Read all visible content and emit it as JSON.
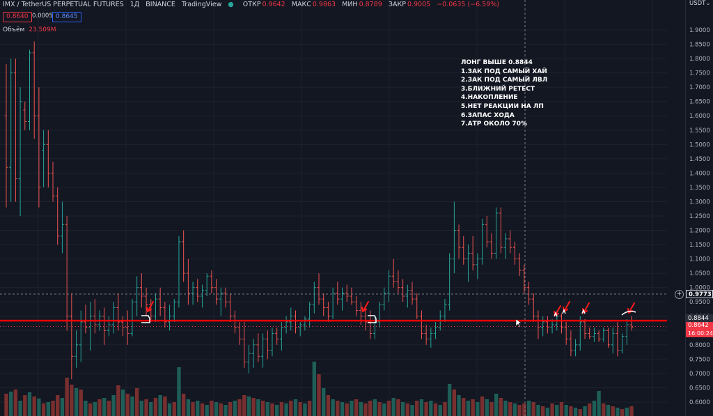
{
  "header": {
    "symbol": "IMX / TetherUS PERPETUAL FUTURES",
    "interval": "1Д",
    "exchange": "BINANCE",
    "source": "TradingView",
    "open_label": "ОТКР",
    "open": "0.9642",
    "high_label": "МАКС",
    "high": "0.9863",
    "low_label": "МИН",
    "low": "0.8789",
    "close_label": "ЗАКР",
    "close": "0.9005",
    "change": "−0.0635 (−6.59%)",
    "bid": "0.8640",
    "spread": "0.0005",
    "ask": "0.8645",
    "volume_label": "Объём",
    "volume": "23.509M"
  },
  "annotation": {
    "lines": [
      "ЛОНГ ВЫШЕ 0.8844",
      "1.ЗАК ПОД САМЫЙ ХАЙ",
      "2.ЗАК ПОД САМЫЙ ЛВЛ",
      "3.БЛИЖНИЙ РЕТЕСТ",
      "4.НАКОПЛЕНИЕ",
      "5.НЕТ РЕАКЦИИ НА ЛП",
      "6.ЗАПАС ХОДА",
      "7.АТР ОКОЛО 70%"
    ]
  },
  "price_axis": {
    "currency": "USDT",
    "crosshair_price": "0.9773",
    "level_price": "0.8844",
    "last_price": "0.8642",
    "countdown": "16:00:24"
  },
  "colors": {
    "background": "#131722",
    "up": "#26a69a",
    "down": "#ef5350",
    "level_line": "#ff0000",
    "grid": "#1e222d"
  },
  "chart_data": {
    "type": "ohlc",
    "y_axis": {
      "ticks": [
        "1.9000",
        "1.8500",
        "1.8000",
        "1.7500",
        "1.7000",
        "1.6500",
        "1.6000",
        "1.5500",
        "1.5000",
        "1.4500",
        "1.4000",
        "1.3500",
        "1.3000",
        "1.2500",
        "1.2000",
        "1.1500",
        "1.1000",
        "1.0500",
        "1.0000",
        "0.9500",
        "0.9000",
        "0.8500",
        "0.8000",
        "0.7500",
        "0.7000",
        "0.6500",
        "0.6000"
      ],
      "range": [
        0.575,
        1.945
      ]
    },
    "horizontal_level": 0.8844,
    "crosshair_price": 0.9773,
    "bars": [
      [
        1.6,
        1.78,
        1.28,
        1.42
      ],
      [
        1.42,
        1.8,
        1.3,
        1.75
      ],
      [
        1.75,
        1.8,
        1.3,
        1.38
      ],
      [
        1.38,
        1.7,
        1.25,
        1.65
      ],
      [
        1.62,
        1.65,
        1.55,
        1.58
      ],
      [
        1.58,
        1.83,
        1.55,
        1.82
      ],
      [
        1.82,
        1.86,
        1.52,
        1.6
      ],
      [
        1.6,
        1.7,
        1.28,
        1.35
      ],
      [
        1.48,
        1.55,
        1.35,
        1.5
      ],
      [
        1.5,
        1.55,
        1.35,
        1.4
      ],
      [
        1.4,
        1.44,
        1.3,
        1.32
      ],
      [
        1.32,
        1.35,
        1.15,
        1.18
      ],
      [
        1.18,
        1.3,
        1.12,
        1.22
      ],
      [
        1.22,
        1.25,
        0.85,
        0.9
      ],
      [
        0.9,
        0.98,
        0.68,
        0.76
      ],
      [
        0.76,
        0.85,
        0.72,
        0.8
      ],
      [
        0.8,
        0.92,
        0.74,
        0.88
      ],
      [
        0.88,
        0.94,
        0.84,
        0.86
      ],
      [
        0.86,
        0.95,
        0.78,
        0.9
      ],
      [
        0.9,
        0.96,
        0.84,
        0.87
      ],
      [
        0.87,
        0.92,
        0.85,
        0.9
      ],
      [
        0.9,
        0.93,
        0.8,
        0.85
      ],
      [
        0.85,
        0.9,
        0.83,
        0.87
      ],
      [
        0.87,
        0.95,
        0.84,
        0.93
      ],
      [
        0.93,
        0.98,
        0.85,
        0.88
      ],
      [
        0.88,
        0.9,
        0.83,
        0.86
      ],
      [
        0.86,
        0.92,
        0.8,
        0.84
      ],
      [
        0.84,
        0.96,
        0.83,
        0.95
      ],
      [
        0.95,
        1.04,
        0.9,
        1.0
      ],
      [
        1.0,
        1.05,
        0.93,
        0.97
      ],
      [
        0.97,
        1.0,
        0.9,
        0.94
      ],
      [
        0.94,
        0.96,
        0.88,
        0.9
      ],
      [
        0.9,
        0.98,
        0.88,
        0.96
      ],
      [
        0.96,
        1.0,
        0.9,
        0.93
      ],
      [
        0.93,
        0.95,
        0.86,
        0.88
      ],
      [
        0.88,
        0.94,
        0.85,
        0.9
      ],
      [
        0.9,
        0.96,
        0.88,
        0.95
      ],
      [
        0.95,
        1.18,
        0.93,
        1.16
      ],
      [
        1.16,
        1.2,
        1.02,
        1.05
      ],
      [
        1.05,
        1.1,
        0.94,
        0.98
      ],
      [
        0.98,
        1.02,
        0.94,
        1.0
      ],
      [
        1.0,
        1.03,
        0.95,
        0.97
      ],
      [
        0.97,
        1.01,
        0.93,
        0.99
      ],
      [
        0.99,
        1.05,
        0.97,
        1.04
      ],
      [
        1.04,
        1.06,
        0.98,
        1.0
      ],
      [
        1.0,
        1.03,
        0.94,
        0.96
      ],
      [
        0.96,
        1.0,
        0.9,
        0.98
      ],
      [
        0.98,
        1.0,
        0.93,
        0.95
      ],
      [
        0.95,
        0.98,
        0.88,
        0.9
      ],
      [
        0.9,
        0.92,
        0.84,
        0.86
      ],
      [
        0.86,
        0.88,
        0.8,
        0.82
      ],
      [
        0.82,
        0.88,
        0.72,
        0.74
      ],
      [
        0.74,
        0.8,
        0.7,
        0.77
      ],
      [
        0.77,
        0.82,
        0.72,
        0.8
      ],
      [
        0.8,
        0.84,
        0.74,
        0.76
      ],
      [
        0.76,
        0.84,
        0.72,
        0.82
      ],
      [
        0.82,
        0.85,
        0.75,
        0.78
      ],
      [
        0.78,
        0.86,
        0.76,
        0.84
      ],
      [
        0.84,
        0.86,
        0.8,
        0.82
      ],
      [
        0.82,
        0.88,
        0.78,
        0.86
      ],
      [
        0.86,
        0.9,
        0.84,
        0.88
      ],
      [
        0.88,
        0.93,
        0.85,
        0.9
      ],
      [
        0.9,
        0.92,
        0.84,
        0.86
      ],
      [
        0.86,
        0.88,
        0.83,
        0.87
      ],
      [
        0.87,
        0.9,
        0.85,
        0.89
      ],
      [
        0.89,
        0.95,
        0.86,
        0.94
      ],
      [
        0.94,
        1.02,
        0.91,
        1.0
      ],
      [
        1.0,
        1.05,
        0.94,
        0.96
      ],
      [
        0.96,
        0.98,
        0.9,
        0.93
      ],
      [
        0.93,
        0.95,
        0.88,
        0.9
      ],
      [
        0.9,
        1.0,
        0.89,
        0.98
      ],
      [
        0.98,
        1.02,
        0.94,
        0.96
      ],
      [
        0.96,
        1.0,
        0.92,
        0.98
      ],
      [
        0.98,
        1.01,
        0.95,
        0.97
      ],
      [
        0.97,
        1.0,
        0.94,
        0.95
      ],
      [
        0.95,
        0.97,
        0.9,
        0.92
      ],
      [
        0.92,
        0.95,
        0.87,
        0.9
      ],
      [
        0.9,
        0.93,
        0.85,
        0.88
      ],
      [
        0.88,
        0.92,
        0.82,
        0.84
      ],
      [
        0.84,
        0.9,
        0.82,
        0.88
      ],
      [
        0.88,
        0.95,
        0.86,
        0.94
      ],
      [
        0.94,
        1.0,
        0.92,
        0.98
      ],
      [
        0.98,
        1.06,
        0.95,
        1.04
      ],
      [
        1.04,
        1.1,
        1.0,
        1.02
      ],
      [
        1.02,
        1.06,
        0.98,
        1.0
      ],
      [
        1.0,
        1.03,
        0.95,
        0.97
      ],
      [
        0.97,
        1.01,
        0.93,
        0.99
      ],
      [
        0.99,
        1.02,
        0.94,
        0.96
      ],
      [
        0.96,
        0.98,
        0.89,
        0.9
      ],
      [
        0.9,
        0.92,
        0.82,
        0.84
      ],
      [
        0.84,
        0.87,
        0.8,
        0.82
      ],
      [
        0.82,
        0.86,
        0.79,
        0.84
      ],
      [
        0.84,
        0.88,
        0.82,
        0.86
      ],
      [
        0.86,
        0.92,
        0.85,
        0.9
      ],
      [
        0.9,
        0.96,
        0.88,
        0.94
      ],
      [
        0.94,
        1.12,
        0.92,
        1.1
      ],
      [
        1.1,
        1.3,
        1.05,
        1.2
      ],
      [
        1.2,
        1.22,
        1.1,
        1.14
      ],
      [
        1.14,
        1.18,
        1.08,
        1.1
      ],
      [
        1.1,
        1.15,
        1.02,
        1.12
      ],
      [
        1.12,
        1.18,
        1.06,
        1.08
      ],
      [
        1.08,
        1.12,
        1.03,
        1.1
      ],
      [
        1.1,
        1.24,
        1.08,
        1.22
      ],
      [
        1.22,
        1.25,
        1.14,
        1.16
      ],
      [
        1.16,
        1.19,
        1.1,
        1.12
      ],
      [
        1.12,
        1.28,
        1.1,
        1.26
      ],
      [
        1.26,
        1.28,
        1.12,
        1.14
      ],
      [
        1.14,
        1.19,
        1.1,
        1.17
      ],
      [
        1.17,
        1.2,
        1.12,
        1.14
      ],
      [
        1.14,
        1.16,
        1.08,
        1.1
      ],
      [
        1.1,
        1.12,
        1.04,
        1.06
      ],
      [
        1.06,
        1.08,
        0.98,
        1.0
      ],
      [
        1.0,
        1.02,
        0.94,
        0.96
      ],
      [
        0.96,
        0.98,
        0.88,
        0.9
      ],
      [
        0.9,
        0.92,
        0.82,
        0.86
      ],
      [
        0.86,
        0.9,
        0.83,
        0.88
      ],
      [
        0.88,
        0.9,
        0.84,
        0.86
      ],
      [
        0.86,
        0.89,
        0.84,
        0.87
      ],
      [
        0.87,
        0.92,
        0.85,
        0.9
      ],
      [
        0.9,
        0.91,
        0.84,
        0.86
      ],
      [
        0.86,
        0.88,
        0.8,
        0.82
      ],
      [
        0.82,
        0.85,
        0.76,
        0.78
      ],
      [
        0.78,
        0.82,
        0.76,
        0.8
      ],
      [
        0.8,
        0.9,
        0.78,
        0.88
      ],
      [
        0.88,
        0.89,
        0.82,
        0.84
      ],
      [
        0.84,
        0.86,
        0.82,
        0.83
      ],
      [
        0.83,
        0.86,
        0.81,
        0.84
      ],
      [
        0.84,
        0.85,
        0.81,
        0.82
      ],
      [
        0.82,
        0.86,
        0.81,
        0.85
      ],
      [
        0.85,
        0.86,
        0.79,
        0.8
      ],
      [
        0.8,
        0.86,
        0.77,
        0.84
      ],
      [
        0.84,
        0.88,
        0.76,
        0.78
      ],
      [
        0.78,
        0.84,
        0.77,
        0.83
      ],
      [
        0.83,
        0.89,
        0.8,
        0.87
      ],
      [
        0.87,
        0.9,
        0.85,
        0.86
      ]
    ],
    "volume_bars": [
      [
        32,
        0
      ],
      [
        35,
        1
      ],
      [
        38,
        0
      ],
      [
        22,
        1
      ],
      [
        30,
        0
      ],
      [
        34,
        1
      ],
      [
        28,
        0
      ],
      [
        25,
        1
      ],
      [
        18,
        0
      ],
      [
        20,
        1
      ],
      [
        22,
        0
      ],
      [
        30,
        0
      ],
      [
        26,
        1
      ],
      [
        55,
        0
      ],
      [
        45,
        0
      ],
      [
        40,
        1
      ],
      [
        38,
        0
      ],
      [
        22,
        1
      ],
      [
        18,
        0
      ],
      [
        20,
        1
      ],
      [
        24,
        0
      ],
      [
        26,
        1
      ],
      [
        22,
        0
      ],
      [
        30,
        1
      ],
      [
        44,
        0
      ],
      [
        38,
        1
      ],
      [
        32,
        0
      ],
      [
        28,
        1
      ],
      [
        40,
        0
      ],
      [
        22,
        1
      ],
      [
        24,
        0
      ],
      [
        20,
        1
      ],
      [
        26,
        0
      ],
      [
        30,
        1
      ],
      [
        28,
        0
      ],
      [
        18,
        1
      ],
      [
        20,
        0
      ],
      [
        70,
        1
      ],
      [
        32,
        0
      ],
      [
        24,
        1
      ],
      [
        20,
        0
      ],
      [
        22,
        1
      ],
      [
        18,
        0
      ],
      [
        16,
        1
      ],
      [
        22,
        0
      ],
      [
        20,
        1
      ],
      [
        18,
        0
      ],
      [
        16,
        1
      ],
      [
        20,
        0
      ],
      [
        22,
        1
      ],
      [
        24,
        0
      ],
      [
        30,
        0
      ],
      [
        28,
        1
      ],
      [
        26,
        0
      ],
      [
        24,
        1
      ],
      [
        22,
        0
      ],
      [
        20,
        1
      ],
      [
        18,
        0
      ],
      [
        16,
        1
      ],
      [
        20,
        0
      ],
      [
        18,
        1
      ],
      [
        22,
        0
      ],
      [
        24,
        1
      ],
      [
        20,
        0
      ],
      [
        18,
        1
      ],
      [
        22,
        0
      ],
      [
        78,
        1
      ],
      [
        60,
        0
      ],
      [
        40,
        1
      ],
      [
        30,
        0
      ],
      [
        24,
        1
      ],
      [
        22,
        0
      ],
      [
        20,
        1
      ],
      [
        18,
        0
      ],
      [
        22,
        1
      ],
      [
        24,
        0
      ],
      [
        20,
        1
      ],
      [
        18,
        0
      ],
      [
        22,
        0
      ],
      [
        24,
        1
      ],
      [
        20,
        0
      ],
      [
        18,
        1
      ],
      [
        22,
        0
      ],
      [
        26,
        1
      ],
      [
        24,
        0
      ],
      [
        20,
        1
      ],
      [
        18,
        0
      ],
      [
        16,
        1
      ],
      [
        22,
        0
      ],
      [
        24,
        1
      ],
      [
        20,
        0
      ],
      [
        22,
        1
      ],
      [
        18,
        0
      ],
      [
        16,
        1
      ],
      [
        20,
        0
      ],
      [
        46,
        1
      ],
      [
        38,
        0
      ],
      [
        30,
        1
      ],
      [
        26,
        0
      ],
      [
        22,
        1
      ],
      [
        24,
        0
      ],
      [
        20,
        1
      ],
      [
        28,
        0
      ],
      [
        24,
        1
      ],
      [
        20,
        0
      ],
      [
        32,
        1
      ],
      [
        26,
        0
      ],
      [
        22,
        1
      ],
      [
        20,
        0
      ],
      [
        18,
        1
      ],
      [
        16,
        0
      ],
      [
        18,
        0
      ],
      [
        22,
        1
      ],
      [
        20,
        0
      ],
      [
        16,
        1
      ],
      [
        14,
        0
      ],
      [
        12,
        1
      ],
      [
        18,
        0
      ],
      [
        16,
        1
      ],
      [
        20,
        0
      ],
      [
        16,
        1
      ],
      [
        14,
        0
      ],
      [
        12,
        1
      ],
      [
        10,
        0
      ],
      [
        14,
        1
      ],
      [
        18,
        0
      ],
      [
        22,
        1
      ],
      [
        36,
        1
      ],
      [
        18,
        0
      ],
      [
        16,
        1
      ],
      [
        14,
        0
      ],
      [
        12,
        1
      ],
      [
        10,
        0
      ],
      [
        12,
        1
      ],
      [
        14,
        0
      ]
    ]
  }
}
